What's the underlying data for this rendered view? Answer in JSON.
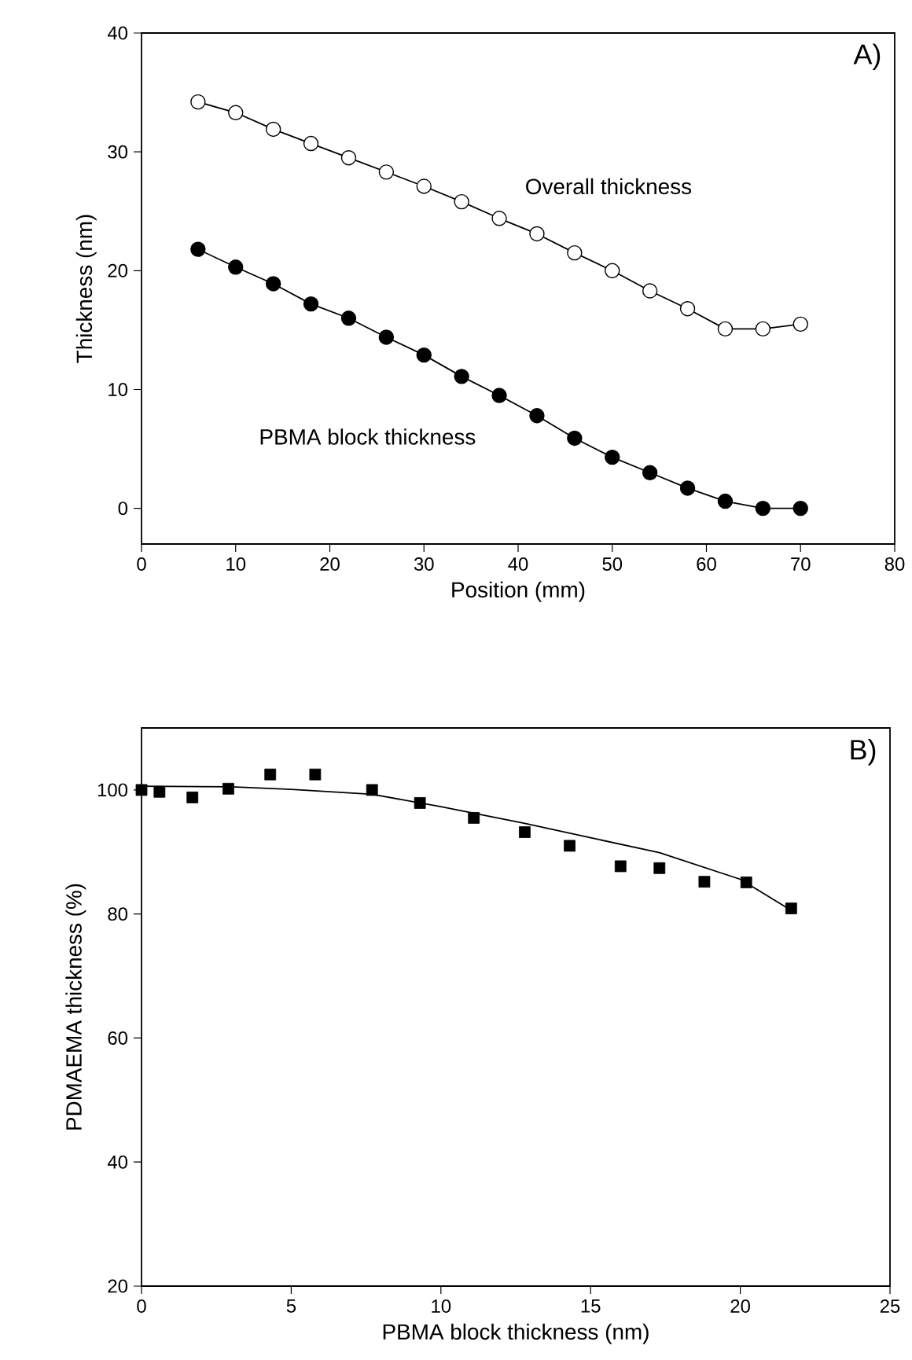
{
  "chart_data": [
    {
      "type": "line",
      "xlabel": "Position (mm)",
      "ylabel": "Thickness (nm)",
      "xlim": [
        0,
        80
      ],
      "ylim": [
        -3,
        40
      ],
      "xticks": [
        0,
        10,
        20,
        30,
        40,
        50,
        60,
        70,
        80
      ],
      "yticks": [
        0,
        10,
        20,
        30,
        40
      ],
      "marker": "circle",
      "line_style": "solid",
      "grid": false,
      "legend": false,
      "annotations": [
        "A)"
      ],
      "series": [
        {
          "name": "Overall thickness",
          "color": "#ffffff",
          "x": [
            6,
            10,
            14,
            18,
            22,
            26,
            30,
            34,
            38,
            42,
            46,
            50,
            54,
            58,
            62,
            66,
            70
          ],
          "values": [
            34.2,
            33.3,
            31.9,
            30.7,
            29.5,
            28.3,
            27.1,
            25.8,
            24.4,
            23.1,
            21.5,
            20.0,
            18.3,
            16.8,
            15.1,
            15.1,
            15.5
          ]
        },
        {
          "name": "PBMA block thickness",
          "color": "#000000",
          "x": [
            6,
            10,
            14,
            18,
            22,
            26,
            30,
            34,
            38,
            42,
            46,
            50,
            54,
            58,
            62,
            66,
            70
          ],
          "values": [
            21.8,
            20.3,
            18.9,
            17.2,
            16.0,
            14.4,
            12.9,
            11.1,
            9.5,
            7.8,
            5.9,
            4.3,
            3.0,
            1.7,
            0.6,
            0.0,
            0.0
          ]
        }
      ]
    },
    {
      "type": "scatter",
      "xlabel": "PBMA block thickness (nm)",
      "ylabel": "PDMAEMA thickness (%)",
      "xlim": [
        0,
        25
      ],
      "ylim": [
        20,
        110
      ],
      "xticks": [
        0,
        5,
        10,
        15,
        20,
        25
      ],
      "yticks": [
        20,
        40,
        60,
        80,
        100
      ],
      "grid": false,
      "legend": false,
      "annotations": [
        "B)"
      ],
      "series": [
        {
          "type": "scatter",
          "marker": "square",
          "color": "#000000",
          "x": [
            0,
            0.6,
            1.7,
            2.9,
            4.3,
            5.8,
            7.7,
            9.3,
            11.1,
            12.8,
            14.3,
            16.0,
            17.3,
            18.8,
            20.2,
            21.7
          ],
          "values": [
            100.0,
            99.7,
            98.8,
            100.2,
            102.5,
            102.5,
            100.0,
            97.9,
            95.5,
            93.2,
            91.0,
            87.7,
            87.4,
            85.2,
            85.1,
            80.9
          ]
        },
        {
          "type": "line",
          "marker": "none",
          "line_style": "solid",
          "color": "#000000",
          "x": [
            0,
            3,
            5,
            7.7,
            10,
            12.8,
            15,
            17.3,
            20,
            21.7
          ],
          "values": [
            100.6,
            100.5,
            100.1,
            99.3,
            97.3,
            94.6,
            92.3,
            89.9,
            85.6,
            80.6
          ]
        }
      ]
    }
  ]
}
